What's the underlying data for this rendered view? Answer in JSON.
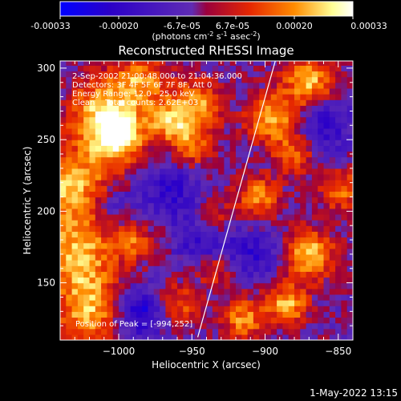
{
  "colorbar": {
    "ticks": [
      "-0.00033",
      "-0.00020",
      "-6.7e-05",
      "6.7e-05",
      "0.00020",
      "0.00033"
    ],
    "unit_main": "(photons cm",
    "unit_sup1": "-2",
    "unit_mid1": " s",
    "unit_sup2": "-1",
    "unit_mid2": " asec",
    "unit_sup3": "-2",
    "unit_close": ")",
    "range": [
      -0.00033,
      0.00033
    ],
    "colors": [
      "#0000ff",
      "#2b00c8",
      "#5f2cb4",
      "#9b003c",
      "#e62800",
      "#ff8c00",
      "#ffff96",
      "#ffffff"
    ]
  },
  "annotations": {
    "line1": "2-Sep-2002 21:00:48.000 to 21:04:36.000",
    "line2": "Detectors: 3F 4F 5F 6F 7F 8F, Att 0",
    "line3": "Energy Range: 12.0 - 25.0 keV",
    "line4": "Clean    Total counts: 2.62E+03",
    "peak": "Position of Peak = [-994,252]"
  },
  "footer": {
    "datetime": "1-May-2022 13:15"
  },
  "chart_data": {
    "type": "heatmap",
    "title": "Reconstructed RHESSI Image",
    "xlabel": "Heliocentric X (arcsec)",
    "ylabel": "Heliocentric Y (arcsec)",
    "xlim": [
      -1040,
      -840
    ],
    "ylim": [
      110,
      305
    ],
    "xticks": [
      -1000,
      -950,
      -900,
      -850
    ],
    "xtick_labels": [
      "−1000",
      "−950",
      "−900",
      "−850"
    ],
    "yticks": [
      150,
      200,
      250,
      300
    ],
    "ytick_labels": [
      "150",
      "200",
      "250",
      "300"
    ],
    "limb_line": [
      [
        -946,
        112
      ],
      [
        -893,
        305
      ]
    ],
    "peak": [
      -994,
      252
    ],
    "blobs": [
      {
        "x": -1000,
        "y": 252,
        "amp": 1.0,
        "r": 12
      },
      {
        "x": -1030,
        "y": 218,
        "amp": 0.85,
        "r": 20
      },
      {
        "x": -1028,
        "y": 168,
        "amp": 0.8,
        "r": 18
      },
      {
        "x": -1020,
        "y": 130,
        "amp": 0.75,
        "r": 16
      },
      {
        "x": -1012,
        "y": 270,
        "amp": 0.8,
        "r": 16
      },
      {
        "x": -985,
        "y": 290,
        "amp": 0.7,
        "r": 14
      },
      {
        "x": -945,
        "y": 275,
        "amp": 0.7,
        "r": 12
      },
      {
        "x": -965,
        "y": 262,
        "amp": 0.75,
        "r": 10
      },
      {
        "x": -950,
        "y": 245,
        "amp": 0.6,
        "r": 10
      },
      {
        "x": -990,
        "y": 180,
        "amp": 0.55,
        "r": 10
      },
      {
        "x": -935,
        "y": 195,
        "amp": 0.55,
        "r": 9
      },
      {
        "x": -960,
        "y": 135,
        "amp": 0.55,
        "r": 10
      },
      {
        "x": -935,
        "y": 160,
        "amp": 0.5,
        "r": 9
      },
      {
        "x": -895,
        "y": 265,
        "amp": 0.8,
        "r": 12
      },
      {
        "x": -870,
        "y": 290,
        "amp": 0.85,
        "r": 12
      },
      {
        "x": -870,
        "y": 170,
        "amp": 0.9,
        "r": 12
      },
      {
        "x": -905,
        "y": 210,
        "amp": 0.7,
        "r": 10
      },
      {
        "x": -885,
        "y": 135,
        "amp": 0.8,
        "r": 10
      },
      {
        "x": -915,
        "y": 125,
        "amp": 0.7,
        "r": 10
      },
      {
        "x": -848,
        "y": 215,
        "amp": 0.6,
        "r": 10
      },
      {
        "x": -880,
        "y": 240,
        "amp": 0.6,
        "r": 10
      },
      {
        "x": -985,
        "y": 130,
        "amp": -0.7,
        "r": 12
      },
      {
        "x": -940,
        "y": 180,
        "amp": -0.55,
        "r": 14
      },
      {
        "x": -965,
        "y": 215,
        "amp": -0.5,
        "r": 14
      },
      {
        "x": -905,
        "y": 170,
        "amp": -0.45,
        "r": 12
      },
      {
        "x": -860,
        "y": 260,
        "amp": -0.5,
        "r": 14
      },
      {
        "x": -1005,
        "y": 205,
        "amp": -0.4,
        "r": 12
      }
    ]
  }
}
